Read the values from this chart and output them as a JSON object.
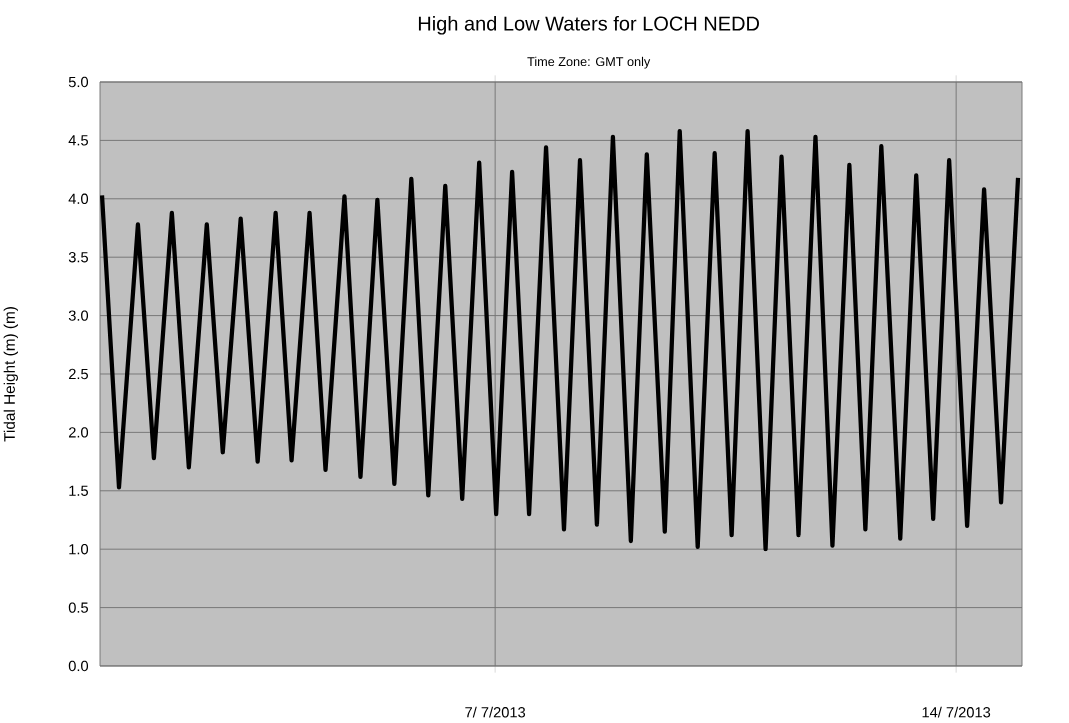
{
  "chart_data": {
    "type": "line",
    "title": "High and Low Waters for LOCH NEDD",
    "subtitle": "Time Zone: GMT only",
    "ylabel": "Tidal Height (m) (m)",
    "x": [
      "2013-07-01T00:44",
      "2013-07-01T06:55",
      "2013-07-01T13:49",
      "2013-07-01T19:38",
      "2013-07-02T02:11",
      "2013-07-02T08:22",
      "2013-07-02T14:55",
      "2013-07-02T20:44",
      "2013-07-03T03:16",
      "2013-07-03T09:27",
      "2013-07-03T16:00",
      "2013-07-03T21:49",
      "2013-07-04T04:22",
      "2013-07-04T10:11",
      "2013-07-04T17:05",
      "2013-07-04T22:55",
      "2013-07-05T05:05",
      "2013-07-05T11:16",
      "2013-07-05T17:27",
      "2013-07-05T23:38",
      "2013-07-06T05:49",
      "2013-07-06T12:00",
      "2013-07-06T18:11",
      "2013-07-07T00:22",
      "2013-07-07T06:11",
      "2013-07-07T12:22",
      "2013-07-07T18:33",
      "2013-07-08T01:05",
      "2013-07-08T06:55",
      "2013-07-08T13:05",
      "2013-07-08T18:55",
      "2013-07-09T01:27",
      "2013-07-09T07:16",
      "2013-07-09T13:49",
      "2013-07-09T19:16",
      "2013-07-10T01:49",
      "2013-07-10T08:00",
      "2013-07-10T14:11",
      "2013-07-10T20:00",
      "2013-07-11T02:33",
      "2013-07-11T08:22",
      "2013-07-11T14:33",
      "2013-07-11T20:44",
      "2013-07-12T02:55",
      "2013-07-12T09:05",
      "2013-07-12T14:55",
      "2013-07-12T20:44",
      "2013-07-13T03:38",
      "2013-07-13T09:27",
      "2013-07-13T15:38",
      "2013-07-13T21:27",
      "2013-07-14T04:00",
      "2013-07-14T10:11",
      "2013-07-14T16:22",
      "2013-07-14T22:33"
    ],
    "series": [
      {
        "color": "#000000",
        "values": [
          4.03,
          1.53,
          3.78,
          1.78,
          3.88,
          1.7,
          3.78,
          1.83,
          3.83,
          1.75,
          3.88,
          1.76,
          3.88,
          1.68,
          4.02,
          1.62,
          3.99,
          1.56,
          4.17,
          1.46,
          4.11,
          1.43,
          4.31,
          1.3,
          4.23,
          1.3,
          4.44,
          1.17,
          4.33,
          1.21,
          4.53,
          1.07,
          4.38,
          1.15,
          4.58,
          1.02,
          4.39,
          1.12,
          4.58,
          1.0,
          4.36,
          1.12,
          4.53,
          1.03,
          4.29,
          1.17,
          4.45,
          1.09,
          4.2,
          1.26,
          4.33,
          1.2,
          4.08,
          1.4,
          4.18
        ]
      }
    ],
    "xlim": [
      "2013-07-01",
      "2013-07-15"
    ],
    "xticks": [
      {
        "value": "2013-07-07",
        "label": "7/ 7/2013"
      },
      {
        "value": "2013-07-14",
        "label": "14/ 7/2013"
      }
    ],
    "ylim": [
      0,
      5
    ],
    "yticks": [
      {
        "value": 0,
        "label": "0.0"
      },
      {
        "value": 0.5,
        "label": "0.5"
      },
      {
        "value": 1,
        "label": "1.0"
      },
      {
        "value": 1.5,
        "label": "1.5"
      },
      {
        "value": 2,
        "label": "2.0"
      },
      {
        "value": 2.5,
        "label": "2.5"
      },
      {
        "value": 3,
        "label": "3.0"
      },
      {
        "value": 3.5,
        "label": "3.5"
      },
      {
        "value": 4,
        "label": "4.0"
      },
      {
        "value": 4.5,
        "label": "4.5"
      },
      {
        "value": 5,
        "label": "5.0"
      }
    ],
    "grid": true,
    "marker": "none",
    "line_style": "solid"
  }
}
